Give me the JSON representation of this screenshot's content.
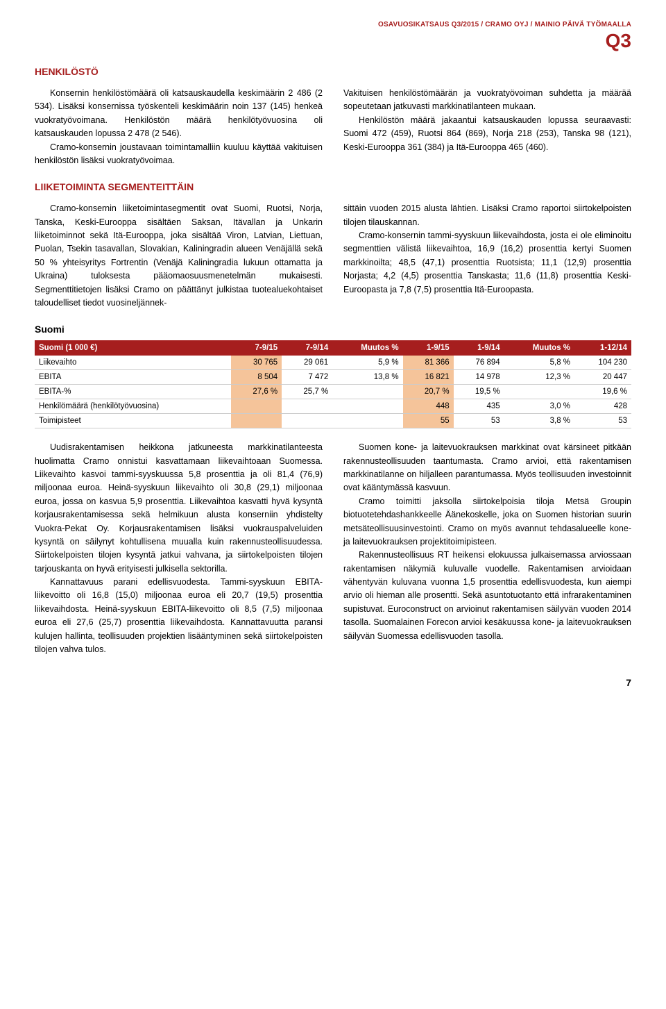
{
  "header": {
    "line": "OSAVUOSIKATSAUS Q3/2015 / CRAMO OYJ / MAINIO PÄIVÄ TYÖMAALLA",
    "q": "Q3"
  },
  "section1": {
    "title": "HENKILÖSTÖ",
    "left": {
      "p1": "Konsernin henkilöstömäärä oli katsauskaudella keskimäärin 2 486 (2 534). Lisäksi konsernissa työskenteli keskimäärin noin 137 (145) henkeä vuokratyövoimana. Henkilöstön määrä henkilötyövuosina oli katsauskauden lopussa 2 478 (2 546).",
      "p2": "Cramo-konsernin joustavaan toimintamalliin kuuluu käyttää vakituisen henkilöstön lisäksi vuokratyövoimaa."
    },
    "right": {
      "p1": "Vakituisen henkilöstömäärän ja vuokratyövoiman suhdetta ja määrää sopeutetaan jatkuvasti markkinatilanteen mukaan.",
      "p2": "Henkilöstön määrä jakaantui katsauskauden lopussa seuraavasti: Suomi 472 (459), Ruotsi 864 (869), Norja 218 (253), Tanska 98 (121), Keski-Eurooppa 361 (384) ja Itä-Eurooppa 465 (460)."
    }
  },
  "section2": {
    "title": "LIIKETOIMINTA SEGMENTEITTÄIN",
    "left": {
      "p1": "Cramo-konsernin liiketoimintasegmentit ovat Suomi, Ruotsi, Norja, Tanska, Keski-Eurooppa sisältäen Saksan, Itävallan ja Unkarin liiketoiminnot sekä Itä-Eurooppa, joka sisältää Viron, Latvian, Liettuan, Puolan, Tsekin tasavallan, Slovakian, Kaliningradin alueen Venäjällä sekä 50 % yhteisyritys Fortrentin (Venäjä Kaliningradia lukuun ottamatta ja Ukraina) tuloksesta pääomaosuusmenetelmän mukaisesti. Segmenttitietojen lisäksi Cramo on päättänyt julkistaa tuotealuekohtaiset taloudelliset tiedot vuosineljännek-"
    },
    "right": {
      "p1": "sittäin vuoden 2015 alusta lähtien. Lisäksi Cramo raportoi siirtokelpoisten tilojen tilauskannan.",
      "p2": "Cramo-konsernin tammi-syyskuun liikevaihdosta, josta ei ole eliminoitu segmenttien välistä liikevaihtoa, 16,9 (16,2) prosenttia kertyi Suomen markkinoilta; 48,5 (47,1) prosenttia Ruotsista; 11,1 (12,9) prosenttia Norjasta; 4,2 (4,5) prosenttia Tanskasta; 11,6 (11,8) prosenttia Keski-Euroopasta ja 7,8 (7,5) prosenttia Itä-Euroopasta."
    }
  },
  "suomi": {
    "title": "Suomi",
    "table": {
      "columns": [
        "Suomi (1 000 €)",
        "7-9/15",
        "7-9/14",
        "Muutos %",
        "1-9/15",
        "1-9/14",
        "Muutos %",
        "1-12/14"
      ],
      "rows": [
        [
          "Liikevaihto",
          "30 765",
          "29 061",
          "5,9 %",
          "81 366",
          "76 894",
          "5,8 %",
          "104 230"
        ],
        [
          "EBITA",
          "8 504",
          "7 472",
          "13,8 %",
          "16 821",
          "14 978",
          "12,3 %",
          "20 447"
        ],
        [
          "EBITA-%",
          "27,6 %",
          "25,7 %",
          "",
          "20,7 %",
          "19,5 %",
          "",
          "19,6 %"
        ],
        [
          "Henkilömäärä (henkilötyövuosina)",
          "",
          "",
          "",
          "448",
          "435",
          "3,0 %",
          "428"
        ],
        [
          "Toimipisteet",
          "",
          "",
          "",
          "55",
          "53",
          "3,8 %",
          "53"
        ]
      ],
      "highlight_cols_dark": [
        1,
        4
      ],
      "header_bg": "#a61e1e",
      "hl1_bg": "#f5c49a",
      "hl2_bg": "#fde6cc"
    },
    "left": {
      "p1": "Uudisrakentamisen heikkona jatkuneesta markkinatilanteesta huolimatta Cramo onnistui kasvattamaan liikevaihtoaan Suomessa. Liikevaihto kasvoi tammi-syyskuussa 5,8 prosenttia ja oli 81,4 (76,9) miljoonaa euroa. Heinä-syyskuun liikevaihto oli 30,8 (29,1) miljoonaa euroa, jossa on kasvua 5,9 prosenttia. Liikevaihtoa kasvatti hyvä kysyntä korjausrakentamisessa sekä helmikuun alusta konserniin yhdistelty Vuokra-Pekat Oy. Korjausrakentamisen lisäksi vuokrauspalveluiden kysyntä on säilynyt kohtullisena muualla kuin rakennusteollisuudessa. Siirtokelpoisten tilojen kysyntä jatkui vahvana, ja siirtokelpoisten tilojen tarjouskanta on hyvä erityisesti julkisella sektorilla.",
      "p2": "Kannattavuus parani edellisvuodesta. Tammi-syyskuun EBITA-liikevoitto oli 16,8 (15,0) miljoonaa euroa eli 20,7 (19,5)  prosenttia liikevaihdosta. Heinä-syyskuun EBITA-liikevoitto oli 8,5 (7,5) miljoonaa euroa eli 27,6 (25,7) prosenttia liikevaihdosta. Kannattavuutta paransi kulujen hallinta, teollisuuden projektien lisääntyminen sekä siirtokelpoisten tilojen vahva tulos."
    },
    "right": {
      "p1": "Suomen kone- ja laitevuokrauksen markkinat ovat kärsineet pitkään rakennusteollisuuden taantumasta. Cramo arvioi, että rakentamisen markkinatilanne on hiljalleen parantumassa. Myös teollisuuden investoinnit ovat kääntymässä kasvuun.",
      "p2": "Cramo toimitti jaksolla siirtokelpoisia tiloja Metsä Groupin biotuotetehdashankkeelle Äänekoskelle, joka on Suomen historian suurin metsäteollisuusinvestointi. Cramo on myös avannut tehdasalueelle kone- ja laitevuokrauksen projektitoimipisteen.",
      "p3": "Rakennusteollisuus RT heikensi elokuussa julkaisemassa arviossaan rakentamisen näkymiä kuluvalle vuodelle. Rakentamisen arvioidaan vähentyvän kuluvana vuonna 1,5 prosenttia edellisvuodesta, kun aiempi arvio oli hieman alle prosentti. Sekä asuntotuotanto että infrarakentaminen supistuvat. Euroconstruct on arvioinut rakentamisen säilyvän vuoden 2014 tasolla. Suomalainen Forecon arvioi kesäkuussa kone- ja laitevuokrauksen säilyvän Suomessa edellisvuoden tasolla."
    }
  },
  "page": "7"
}
